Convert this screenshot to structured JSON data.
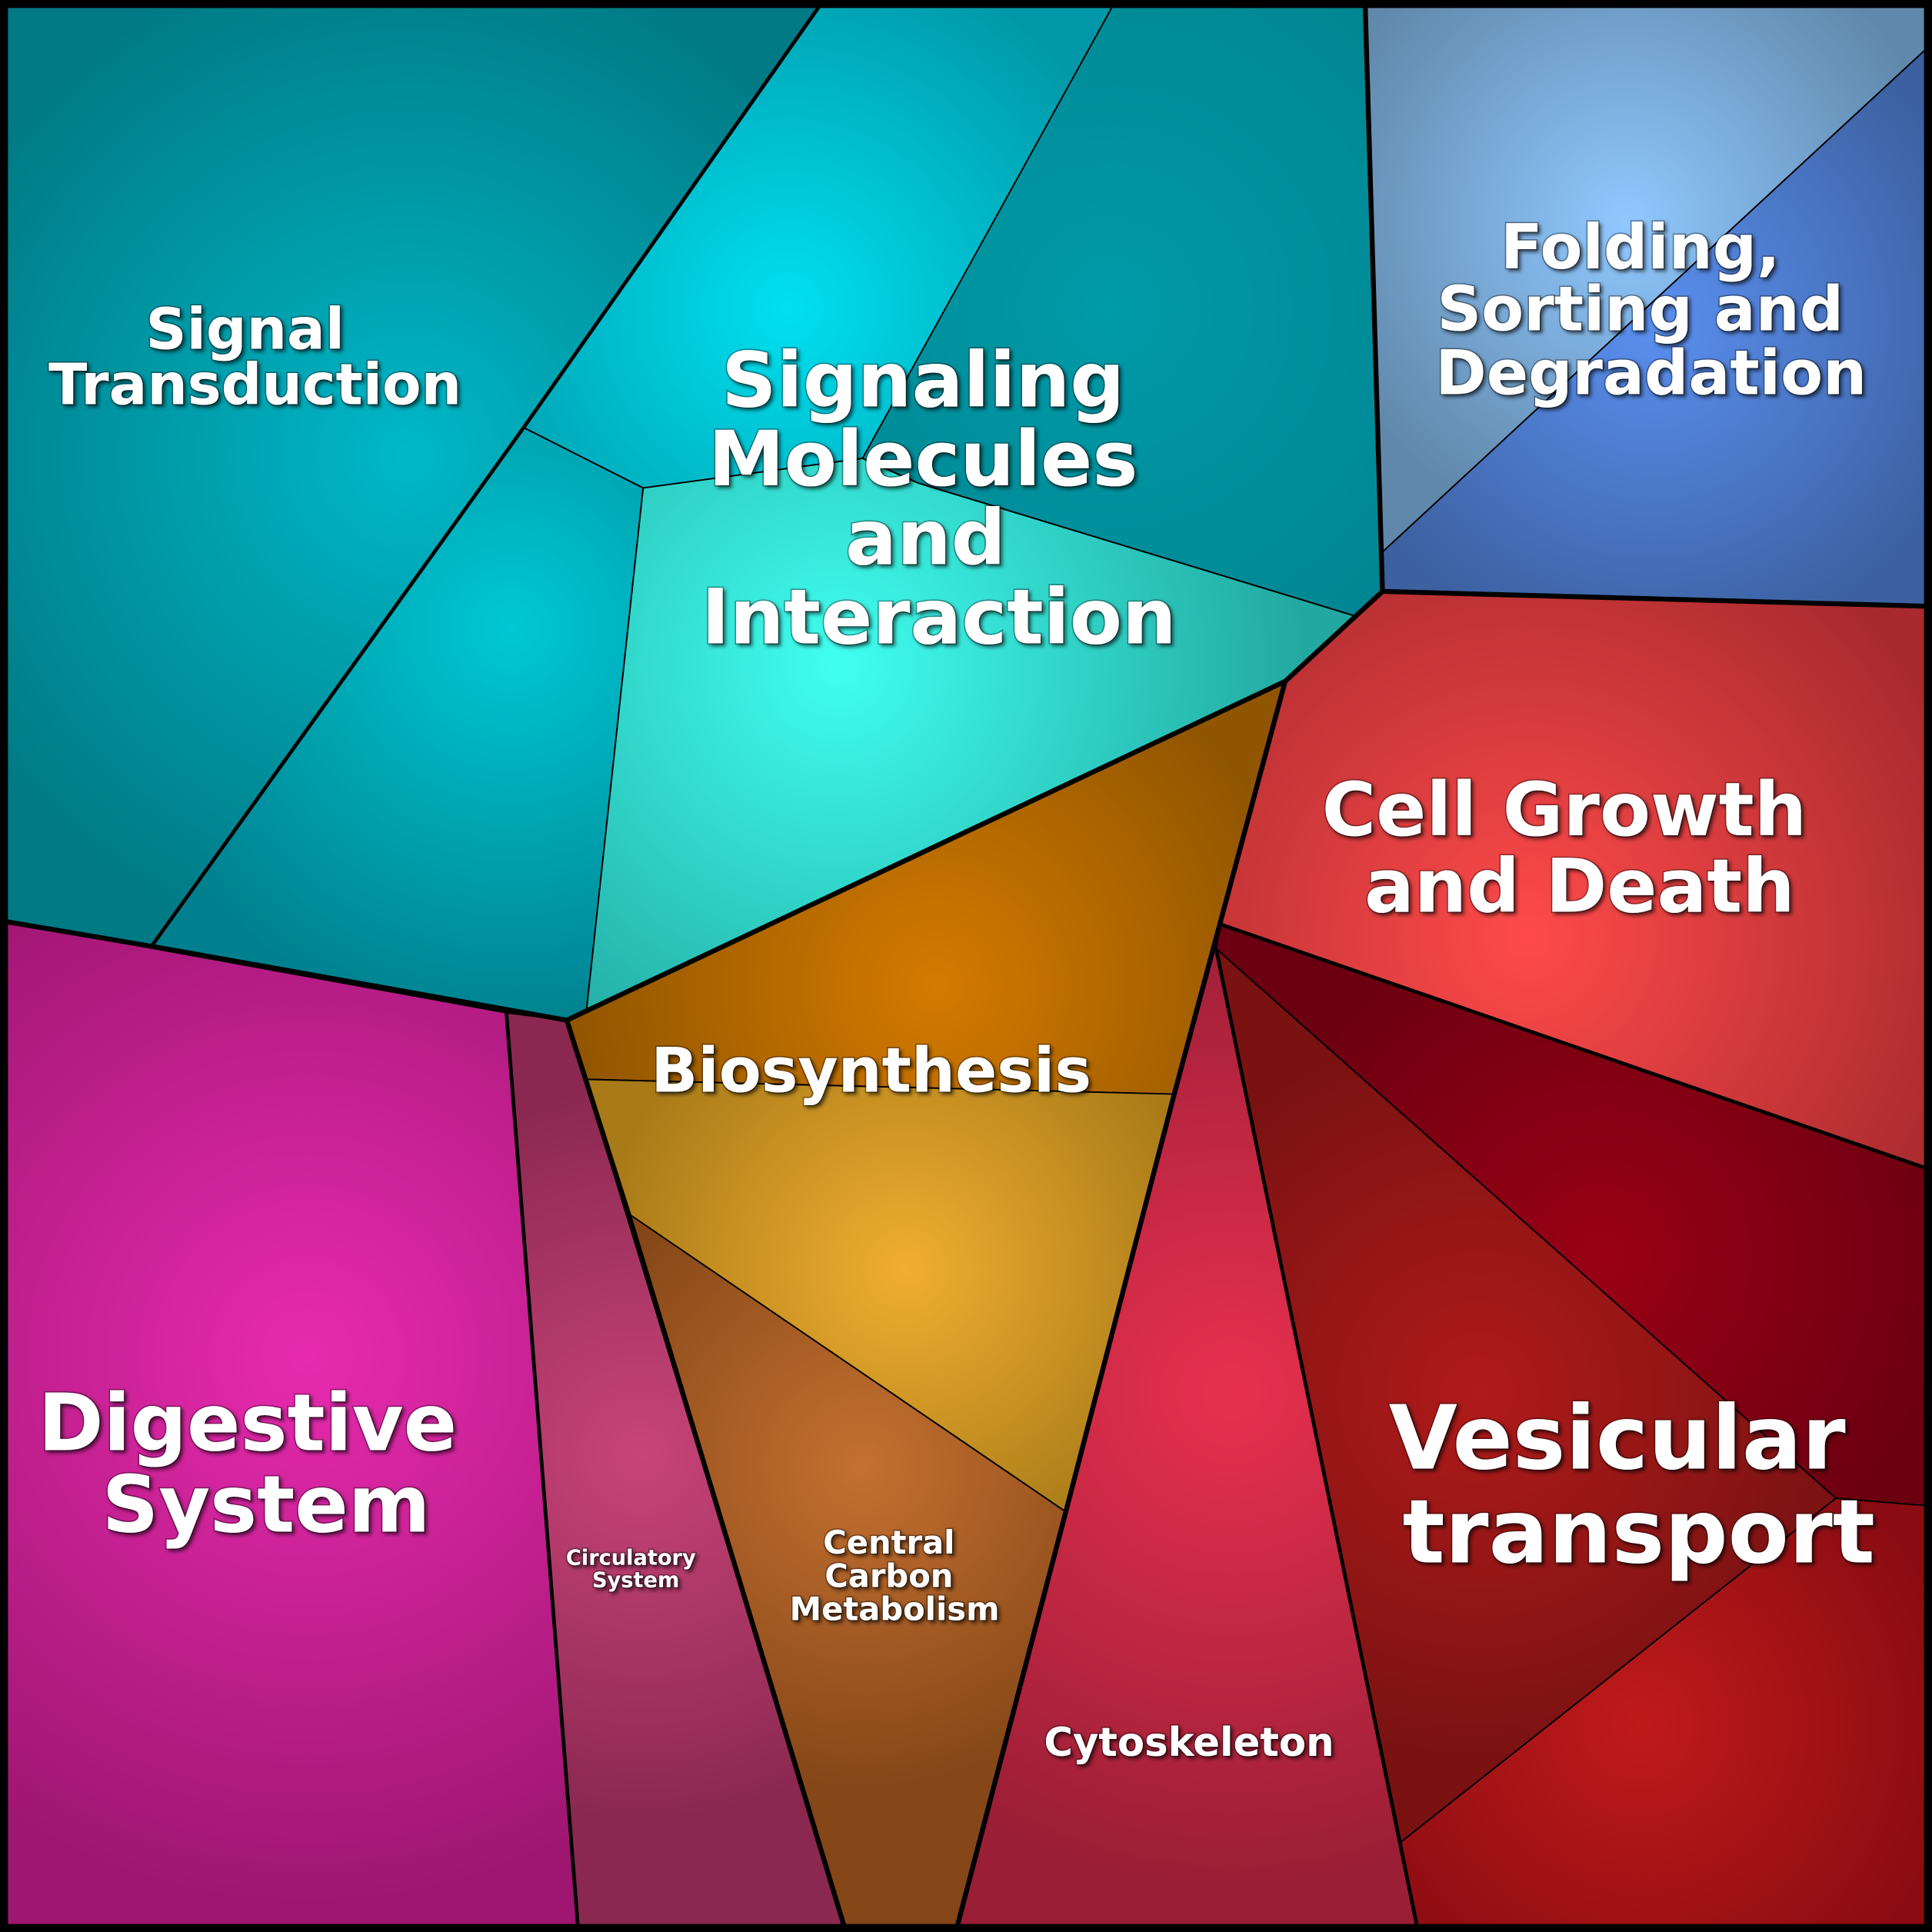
{
  "diagram": {
    "type": "voronoi-treemap",
    "cells": {
      "signal_transduction_a": {
        "base": "#007a85",
        "center": "#00b8c8"
      },
      "signal_transduction_b": {
        "base": "#00808e",
        "center": "#00c8d4"
      },
      "signaling_a": {
        "base": "#0098a8",
        "center": "#00e0f0"
      },
      "signaling_b": {
        "base": "#00848f",
        "center": "#009aa8"
      },
      "signaling_c": {
        "base": "#22a8a0",
        "center": "#40fff0"
      },
      "folding_a": {
        "base": "#6088aa",
        "center": "#90c8ff"
      },
      "folding_b": {
        "base": "#3c60a0",
        "center": "#5a90f0"
      },
      "cell_growth": {
        "base": "#a82a2e",
        "center": "#ff4a4a"
      },
      "vesicular_a": {
        "base": "#6a0010",
        "center": "#9a0015"
      },
      "vesicular_b": {
        "base": "#7a1212",
        "center": "#b01a1a"
      },
      "vesicular_c": {
        "base": "#8a0c12",
        "center": "#c01a1a"
      },
      "cytoskeleton": {
        "base": "#9a1e35",
        "center": "#e83050"
      },
      "biosynthesis_a": {
        "base": "#905500",
        "center": "#d47a00"
      },
      "biosynthesis_b": {
        "base": "#a87a18",
        "center": "#f0ae30"
      },
      "central_carbon": {
        "base": "#854718",
        "center": "#c47030"
      },
      "circulatory": {
        "base": "#8a2850",
        "center": "#c84478"
      },
      "digestive": {
        "base": "#9e1670",
        "center": "#e82ab0"
      }
    },
    "labels": {
      "signal_transduction": [
        "Signal",
        "Transduction"
      ],
      "signaling": [
        "Signaling",
        "Molecules",
        "and",
        "Interaction"
      ],
      "folding": [
        "Folding,",
        "Sorting and",
        "Degradation"
      ],
      "cell_growth": [
        "Cell Growth",
        "and Death"
      ],
      "biosynthesis": [
        "Biosynthesis"
      ],
      "digestive": [
        "Digestive",
        "System"
      ],
      "circulatory": [
        "Circulatory",
        "System"
      ],
      "central_carbon": [
        "Central",
        "Carbon",
        "Metabolism"
      ],
      "cytoskeleton": [
        "Cytoskeleton"
      ],
      "vesicular": [
        "Vesicular",
        "transport"
      ]
    }
  }
}
